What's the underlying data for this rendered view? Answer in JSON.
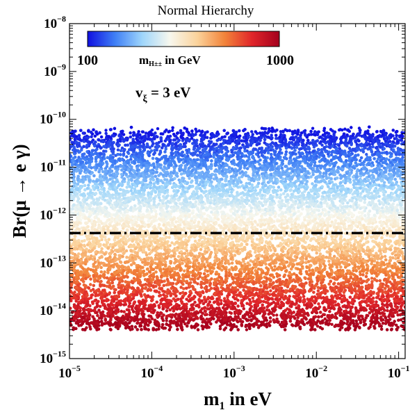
{
  "chart_data": {
    "type": "scatter",
    "title": "Normal Hierarchy",
    "xlabel_main": "m",
    "xlabel_sub": "1",
    "xlabel_rest": " in eV",
    "ylabel": "Br(μ → e γ)",
    "x_scale": "log",
    "y_scale": "log",
    "xlim": [
      1e-05,
      0.12
    ],
    "ylim": [
      1e-15,
      1e-08
    ],
    "x_ticks": [
      {
        "base": "10",
        "exp": "−5",
        "value": 1e-05
      },
      {
        "base": "10",
        "exp": "−4",
        "value": 0.0001
      },
      {
        "base": "10",
        "exp": "−3",
        "value": 0.001
      },
      {
        "base": "10",
        "exp": "−2",
        "value": 0.01
      },
      {
        "base": "10",
        "exp": "−1",
        "value": 0.1
      }
    ],
    "y_ticks": [
      {
        "base": "10",
        "exp": "−15",
        "value": 1e-15
      },
      {
        "base": "10",
        "exp": "−14",
        "value": 1e-14
      },
      {
        "base": "10",
        "exp": "−13",
        "value": 1e-13
      },
      {
        "base": "10",
        "exp": "−12",
        "value": 1e-12
      },
      {
        "base": "10",
        "exp": "−11",
        "value": 1e-11
      },
      {
        "base": "10",
        "exp": "−10",
        "value": 1e-10
      },
      {
        "base": "10",
        "exp": "−9",
        "value": 1e-09
      },
      {
        "base": "10",
        "exp": "−8",
        "value": 1e-08
      }
    ],
    "reference_line": {
      "y": 4.2e-13,
      "style": "dash-dot",
      "color": "#000000"
    },
    "annotation": {
      "main": "v",
      "sub": "ξ",
      "rest": " = 3 eV"
    },
    "colorbar": {
      "min_label": "100",
      "max_label": "1000",
      "title_main": "m",
      "title_sub": "H±±",
      "title_rest": " in GeV",
      "min": 100,
      "max": 1000,
      "colors": [
        "#1010e0",
        "#3f7ff5",
        "#9fd6fb",
        "#f7f7ee",
        "#fbd39c",
        "#f2843a",
        "#e0262a",
        "#a4001d"
      ]
    },
    "scatter_band": {
      "x_range": [
        1e-05,
        0.12
      ],
      "y_range": [
        4e-15,
        7e-11
      ],
      "color_encodes": "m_H±± (GeV), log-correlated with Br: low mass → high Br",
      "n_points": 26000
    }
  }
}
